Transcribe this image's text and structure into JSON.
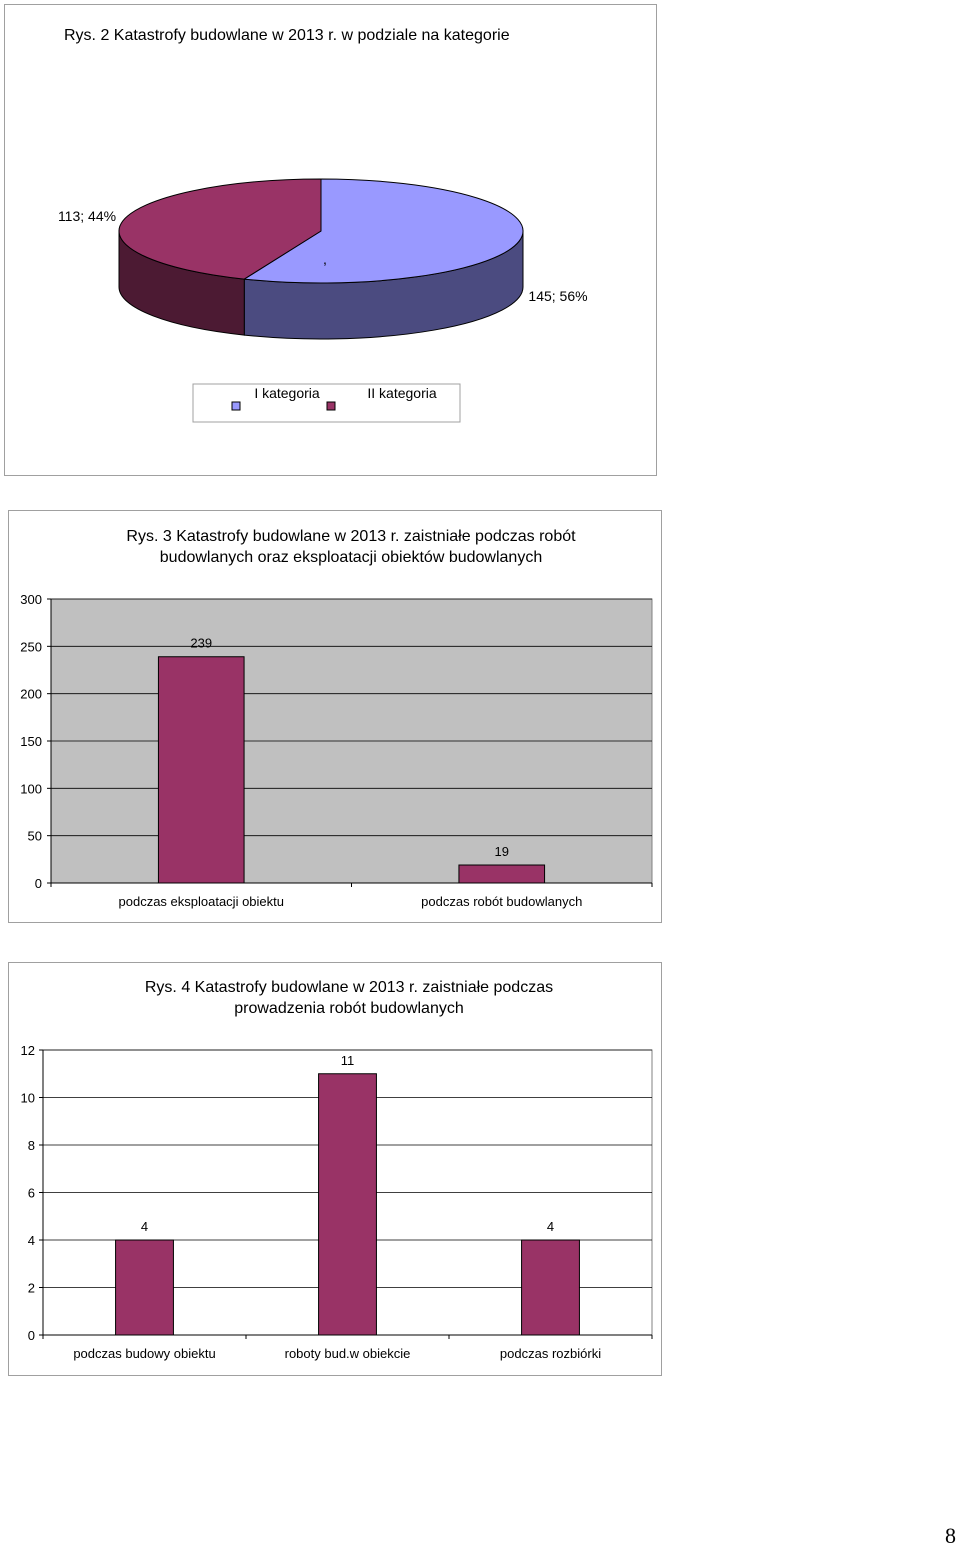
{
  "page": {
    "page_number": "8"
  },
  "colors": {
    "series_bar": "#993366",
    "pie_I": "#9999ff",
    "pie_I_side": "#4b4b80",
    "pie_II": "#993366",
    "pie_II_side": "#4c1a33",
    "plot_bg": "#c0c0c0",
    "grid": "#000000"
  },
  "chart_data": [
    {
      "type": "pie",
      "title": "Rys. 2 Katastrofy budowlane w 2013 r. w podziale na kategorie",
      "three_d": true,
      "slices": [
        {
          "name": "I kategoria",
          "value": 145,
          "percent": 56,
          "label": "145; 56%"
        },
        {
          "name": "II kategoria",
          "value": 113,
          "percent": 44,
          "label": "113; 44%"
        }
      ],
      "stray_label": ",",
      "legend": {
        "placement": "bottom",
        "entries": [
          "I kategoria",
          "II kategoria"
        ]
      }
    },
    {
      "type": "bar",
      "title_lines": [
        "Rys. 3  Katastrofy budowlane w 2013 r. zaistniałe podczas robót",
        "budowlanych oraz eksploatacji obiektów budowlanych"
      ],
      "categories": [
        "podczas eksploatacji obiektu",
        "podczas robót budowlanych"
      ],
      "values": [
        239,
        19
      ],
      "data_labels": [
        "239",
        "19"
      ],
      "ylim": [
        0,
        300
      ],
      "yticks": [
        "0",
        "50",
        "100",
        "150",
        "200",
        "250",
        "300"
      ],
      "grid": true,
      "plot_background": "gray"
    },
    {
      "type": "bar",
      "title_lines": [
        "Rys.  4   Katastrofy budowlane w 2013 r. zaistniałe podczas",
        "prowadzenia robót budowlanych"
      ],
      "categories": [
        "podczas budowy obiektu",
        "roboty bud.w obiekcie",
        "podczas rozbiórki"
      ],
      "values": [
        4,
        11,
        4
      ],
      "data_labels": [
        "4",
        "11",
        "4"
      ],
      "ylim": [
        0,
        12
      ],
      "yticks": [
        "0",
        "2",
        "4",
        "6",
        "8",
        "10",
        "12"
      ],
      "grid": true,
      "plot_background": "white"
    }
  ]
}
